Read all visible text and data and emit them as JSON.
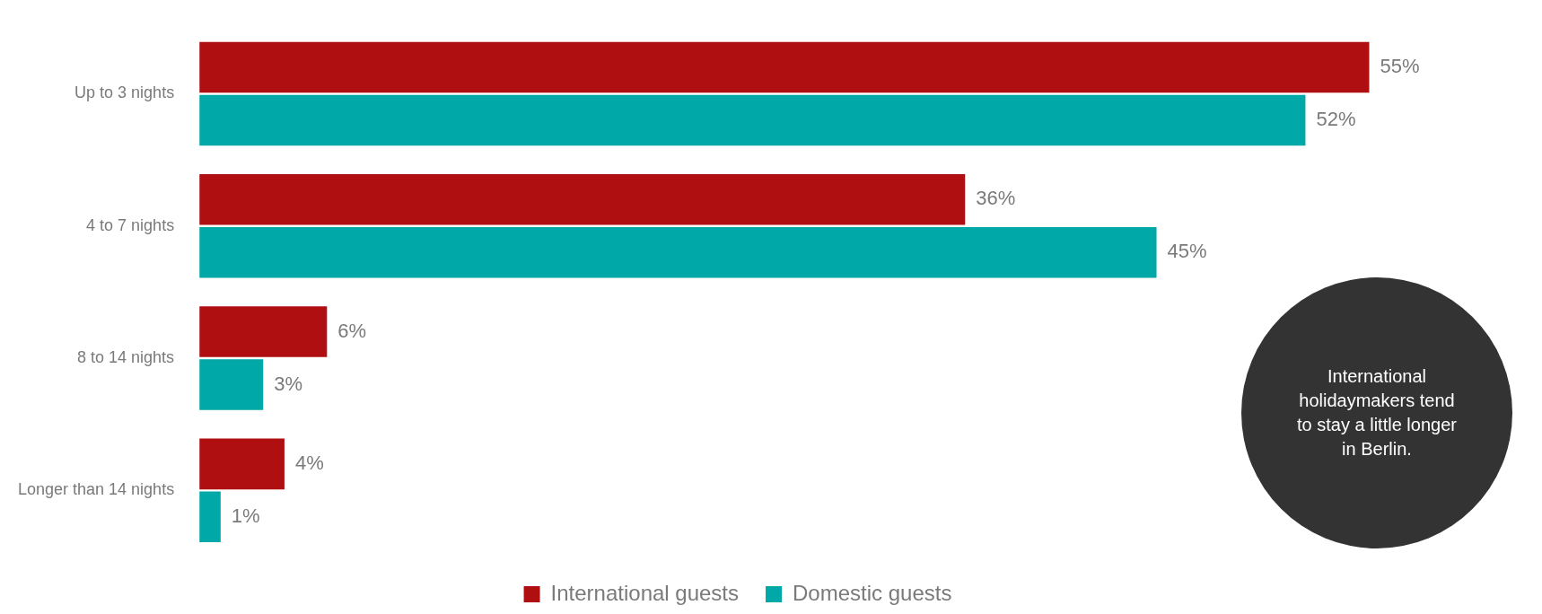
{
  "chart_data": {
    "type": "bar",
    "orientation": "horizontal",
    "tick_labels": "y",
    "legend": "bottom",
    "categories": [
      "Up to 3 nights",
      "4 to 7 nights",
      "8 to 14 nights",
      "Longer than 14 nights"
    ],
    "series": [
      {
        "name": "International guests",
        "color": "#b00f12",
        "values": [
          55,
          36,
          6,
          4
        ],
        "value_labels": [
          "55%",
          "36%",
          "6%",
          "4%"
        ]
      },
      {
        "name": "Domestic guests",
        "color": "#00a8a8",
        "values": [
          52,
          45,
          3,
          1
        ],
        "value_labels": [
          "52%",
          "45%",
          "3%",
          "1%"
        ]
      }
    ],
    "annotations": [
      "International holidaymakers tend to stay a little longer in Berlin."
    ]
  }
}
